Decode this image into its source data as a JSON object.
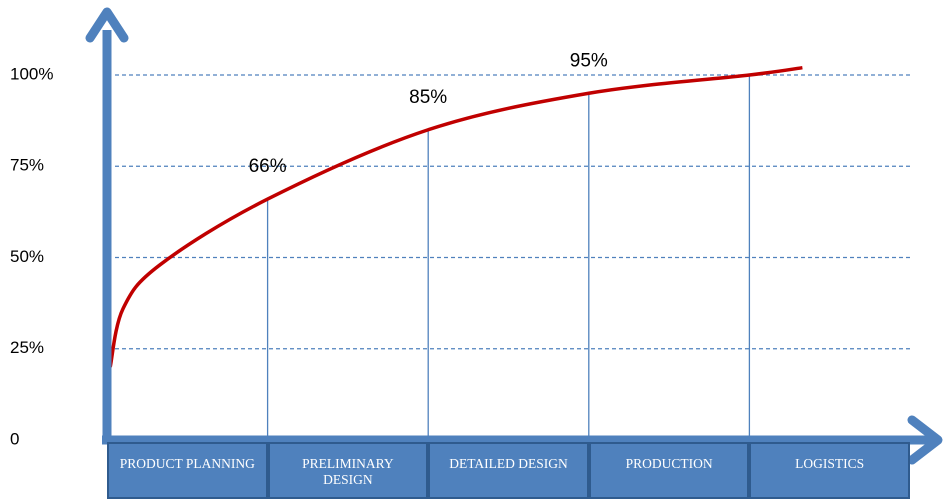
{
  "chart_data": {
    "type": "line",
    "categories": [
      "PRODUCT PLANNING",
      "PRELIMINARY DESIGN",
      "DETAILED DESIGN",
      "PRODUCTION",
      "LOGISTICS"
    ],
    "xlim": [
      0,
      5
    ],
    "ylim": [
      0,
      100
    ],
    "yticks": [
      {
        "value": 0,
        "label": "0"
      },
      {
        "value": 25,
        "label": "25%"
      },
      {
        "value": 50,
        "label": "50%"
      },
      {
        "value": 75,
        "label": "75%"
      },
      {
        "value": 100,
        "label": "100%"
      }
    ],
    "grid": true,
    "series": [
      {
        "color": "#c00000",
        "x": [
          0.02,
          0.1,
          0.33,
          1,
          2,
          3,
          4,
          4.33
        ],
        "values": [
          20,
          36,
          48,
          66,
          85,
          95,
          100,
          102
        ],
        "value_labels": [
          null,
          null,
          null,
          "66%",
          "85%",
          "95%",
          null,
          null
        ]
      }
    ]
  }
}
